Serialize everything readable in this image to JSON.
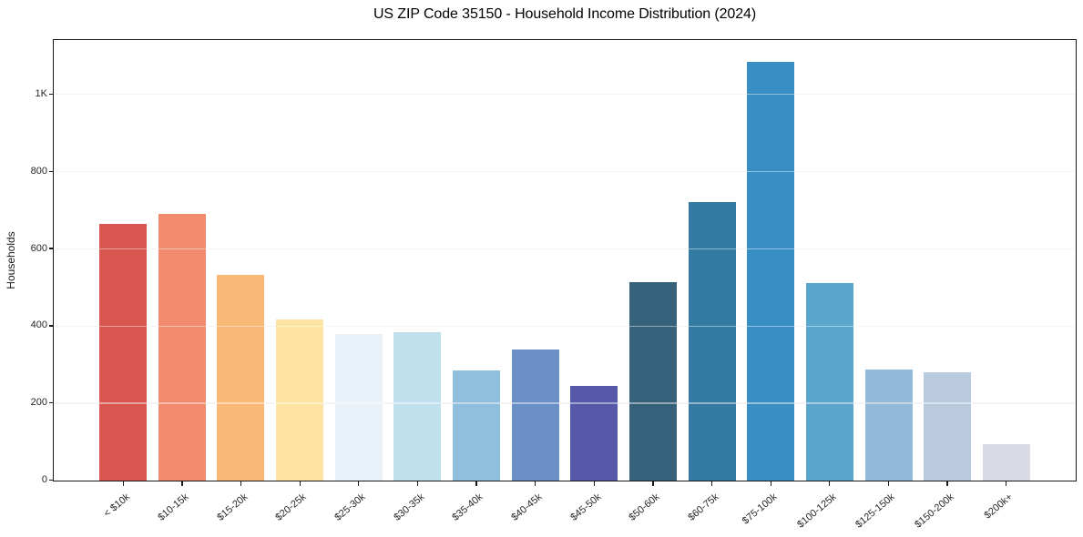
{
  "figure": {
    "background": "#ffffff"
  },
  "chart_data": {
    "type": "bar",
    "title": "US ZIP Code 35150 - Household Income Distribution (2024)",
    "xlabel": "",
    "ylabel": "Households",
    "ylim": [
      0,
      1139
    ],
    "grid": "horizontal-only",
    "legend": "none",
    "yticks": [
      {
        "value": 0,
        "label": "0"
      },
      {
        "value": 200,
        "label": "200"
      },
      {
        "value": 400,
        "label": "400"
      },
      {
        "value": 600,
        "label": "600"
      },
      {
        "value": 800,
        "label": "800"
      },
      {
        "value": 1000,
        "label": "1K"
      }
    ],
    "categories": [
      "< $10k",
      "$10-15k",
      "$15-20k",
      "$20-25k",
      "$25-30k",
      "$30-35k",
      "$35-40k",
      "$40-45k",
      "$45-50k",
      "$50-60k",
      "$60-75k",
      "$75-100k",
      "$100-125k",
      "$125-150k",
      "$150-200k",
      "$200k+"
    ],
    "values": [
      665,
      690,
      533,
      418,
      379,
      384,
      284,
      339,
      246,
      513,
      720,
      1085,
      511,
      287,
      280,
      94
    ],
    "bar_colors": [
      "#d8564f",
      "#f28b6e",
      "#fbb978",
      "#fde3a1",
      "#e8f2f8",
      "#bfe0ec",
      "#90bedd",
      "#6b90c5",
      "#5659a9",
      "#35617b",
      "#337ba3",
      "#398fc4",
      "#5ba6cb",
      "#93b9d8",
      "#b9c9de",
      "#d9dae5"
    ],
    "colors": {
      "axis": "#15191c",
      "gridline": "#ececec",
      "tick_label": "#262626",
      "title": "#000000"
    }
  }
}
